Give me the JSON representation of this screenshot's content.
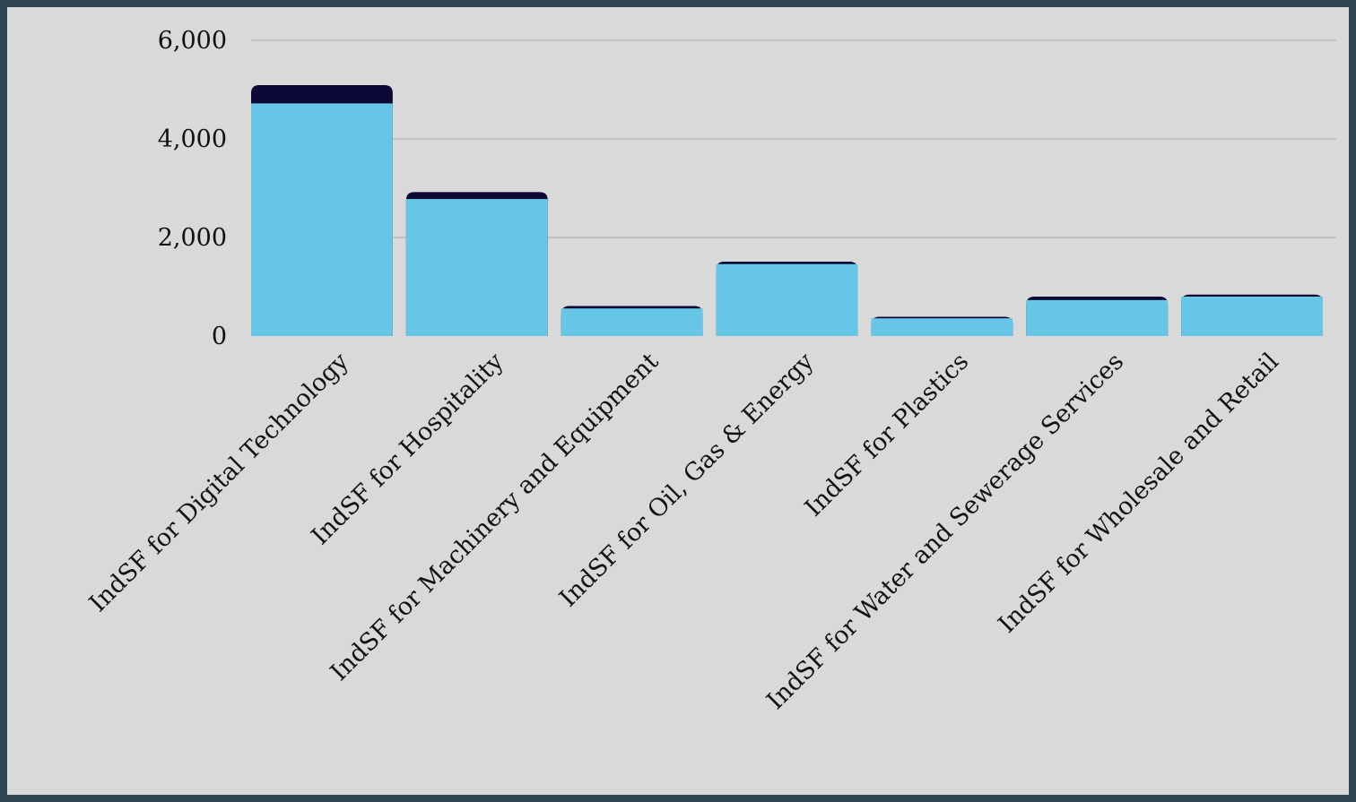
{
  "chart_data": {
    "type": "bar",
    "stacked": true,
    "categories": [
      "IndSF for Digital Technology",
      "IndSF for Hospitality",
      "IndSF for Machinery and Equipment",
      "IndSF for Oil, Gas & Energy",
      "IndSF for Plastics",
      "IndSF for Water and Sewerage Services",
      "IndSF for Wholesale and Retail"
    ],
    "series": [
      {
        "values": [
          4720,
          2780,
          560,
          1460,
          360,
          730,
          800
        ],
        "color": "#67c5e6"
      },
      {
        "values": [
          370,
          140,
          50,
          50,
          30,
          70,
          40
        ],
        "color": "#0b0836"
      }
    ],
    "title": "",
    "xlabel": "",
    "ylabel": "",
    "ylim": [
      0,
      6000
    ],
    "yticks": [
      0,
      2000,
      4000,
      6000
    ],
    "ytick_labels": [
      "0",
      "2,000",
      "4,000",
      "6,000"
    ],
    "grid": true,
    "legend": "none"
  },
  "colors": {
    "background": "#d9d9d9",
    "frame": "#2d4452",
    "gridline": "#a8a8a8"
  }
}
